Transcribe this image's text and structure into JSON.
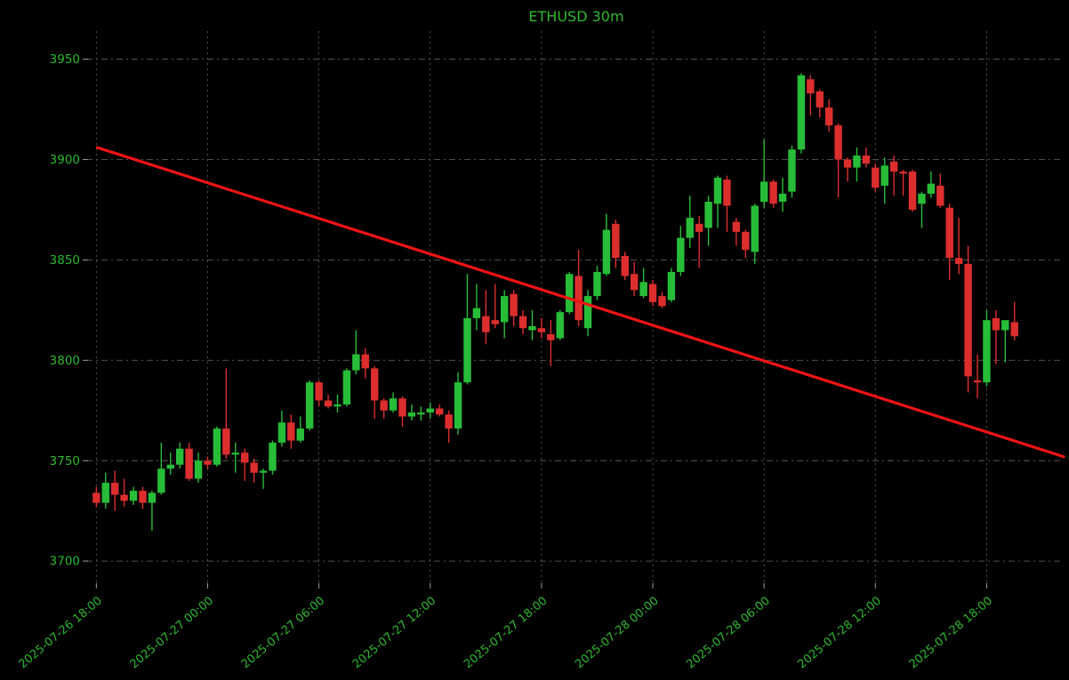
{
  "chart_data": {
    "type": "candlestick",
    "title": "ETHUSD 30m",
    "symbol": "ETHUSD",
    "interval": "30m",
    "colors": {
      "background": "#000000",
      "up": "#28bd38",
      "down": "#dd2e2e",
      "trendline": "#f01414",
      "label": "#2eb82e",
      "grid": "#5a5a5a",
      "tick": "#9a9a9a"
    },
    "y_axis": {
      "tick_values": [
        3700,
        3750,
        3800,
        3850,
        3900,
        3950
      ],
      "tick_labels": [
        "3700",
        "3750",
        "3800",
        "3850",
        "3900",
        "3950"
      ],
      "range": [
        3689,
        3964
      ]
    },
    "x_axis": {
      "tick_labels": [
        "2025-07-26 18:00",
        "2025-07-27 00:00",
        "2025-07-27 06:00",
        "2025-07-27 12:00",
        "2025-07-27 18:00",
        "2025-07-28 00:00",
        "2025-07-28 06:00",
        "2025-07-28 12:00",
        "2025-07-28 18:00"
      ],
      "tick_bars": [
        0,
        12,
        24,
        36,
        48,
        60,
        72,
        84,
        96
      ],
      "range_bars": [
        -0.8,
        104.3
      ]
    },
    "trendline": {
      "start_bar": 0.1,
      "start_price": 3906,
      "end_bar": 104.3,
      "end_price": 3752
    },
    "candles_format": [
      "open",
      "high",
      "low",
      "close"
    ],
    "candles": [
      [
        3734,
        3737,
        3727,
        3729
      ],
      [
        3729,
        3744,
        3726,
        3739
      ],
      [
        3739,
        3745,
        3725,
        3733
      ],
      [
        3733,
        3741,
        3727,
        3730
      ],
      [
        3730,
        3737,
        3728,
        3735
      ],
      [
        3735,
        3737,
        3726,
        3729
      ],
      [
        3729,
        3735,
        3715,
        3734
      ],
      [
        3734,
        3759,
        3733,
        3746
      ],
      [
        3746,
        3754,
        3743,
        3748
      ],
      [
        3748,
        3759,
        3746,
        3756
      ],
      [
        3756,
        3759,
        3740,
        3741
      ],
      [
        3741,
        3754,
        3739,
        3750
      ],
      [
        3750,
        3752,
        3746,
        3748
      ],
      [
        3748,
        3767,
        3747,
        3766
      ],
      [
        3766,
        3796,
        3751,
        3753
      ],
      [
        3753,
        3759,
        3744,
        3754
      ],
      [
        3754,
        3756,
        3740,
        3749
      ],
      [
        3749,
        3751,
        3739,
        3744
      ],
      [
        3744,
        3746,
        3736,
        3745
      ],
      [
        3745,
        3760,
        3743,
        3759
      ],
      [
        3759,
        3775,
        3757,
        3769
      ],
      [
        3769,
        3773,
        3756,
        3760
      ],
      [
        3760,
        3772,
        3759,
        3766
      ],
      [
        3766,
        3790,
        3765,
        3789
      ],
      [
        3789,
        3790,
        3777,
        3780
      ],
      [
        3780,
        3783,
        3776,
        3777
      ],
      [
        3777,
        3783,
        3774,
        3778
      ],
      [
        3778,
        3796,
        3777,
        3795
      ],
      [
        3795,
        3815,
        3793,
        3803
      ],
      [
        3803,
        3806,
        3791,
        3796
      ],
      [
        3796,
        3797,
        3771,
        3780
      ],
      [
        3780,
        3781,
        3771,
        3775
      ],
      [
        3775,
        3784,
        3774,
        3781
      ],
      [
        3781,
        3782,
        3767,
        3772
      ],
      [
        3772,
        3778,
        3770,
        3774
      ],
      [
        3773,
        3777,
        3770,
        3774
      ],
      [
        3774,
        3779,
        3771,
        3776
      ],
      [
        3776,
        3778,
        3772,
        3773
      ],
      [
        3773,
        3775,
        3759,
        3766
      ],
      [
        3766,
        3794,
        3763,
        3789
      ],
      [
        3789,
        3843,
        3788,
        3821
      ],
      [
        3821,
        3838,
        3815,
        3826
      ],
      [
        3822,
        3835,
        3808,
        3814
      ],
      [
        3820,
        3838,
        3816,
        3818
      ],
      [
        3819,
        3835,
        3811,
        3832
      ],
      [
        3833,
        3835,
        3817,
        3822
      ],
      [
        3822,
        3825,
        3813,
        3816
      ],
      [
        3815,
        3825,
        3810,
        3817
      ],
      [
        3816,
        3821,
        3811,
        3814
      ],
      [
        3813,
        3820,
        3797,
        3810
      ],
      [
        3811,
        3825,
        3810,
        3824
      ],
      [
        3824,
        3844,
        3823,
        3843
      ],
      [
        3842,
        3855,
        3817,
        3820
      ],
      [
        3816,
        3835,
        3812,
        3832
      ],
      [
        3832,
        3847,
        3830,
        3844
      ],
      [
        3843,
        3873,
        3842,
        3865
      ],
      [
        3868,
        3870,
        3846,
        3851
      ],
      [
        3852,
        3854,
        3840,
        3842
      ],
      [
        3843,
        3849,
        3832,
        3835
      ],
      [
        3832,
        3846,
        3831,
        3839
      ],
      [
        3838,
        3840,
        3827,
        3829
      ],
      [
        3832,
        3834,
        3826,
        3827
      ],
      [
        3830,
        3846,
        3829,
        3844
      ],
      [
        3844,
        3867,
        3842,
        3861
      ],
      [
        3861,
        3882,
        3856,
        3871
      ],
      [
        3868,
        3872,
        3846,
        3864
      ],
      [
        3866,
        3882,
        3857,
        3879
      ],
      [
        3878,
        3892,
        3866,
        3891
      ],
      [
        3890,
        3892,
        3864,
        3877
      ],
      [
        3869,
        3871,
        3857,
        3864
      ],
      [
        3864,
        3865,
        3851,
        3855
      ],
      [
        3854,
        3878,
        3848,
        3877
      ],
      [
        3879,
        3910,
        3876,
        3889
      ],
      [
        3889,
        3890,
        3876,
        3878
      ],
      [
        3879,
        3891,
        3874,
        3883
      ],
      [
        3884,
        3907,
        3881,
        3905
      ],
      [
        3905,
        3943,
        3903,
        3942
      ],
      [
        3940,
        3942,
        3922,
        3933
      ],
      [
        3934,
        3935,
        3921,
        3926
      ],
      [
        3926,
        3930,
        3914,
        3917
      ],
      [
        3917,
        3918,
        3881,
        3900
      ],
      [
        3900,
        3901,
        3889,
        3896
      ],
      [
        3896,
        3906,
        3889,
        3902
      ],
      [
        3902,
        3906,
        3896,
        3898
      ],
      [
        3896,
        3898,
        3884,
        3886
      ],
      [
        3887,
        3901,
        3878,
        3897
      ],
      [
        3899,
        3902,
        3882,
        3894
      ],
      [
        3894,
        3895,
        3882,
        3893
      ],
      [
        3894,
        3895,
        3874,
        3875
      ],
      [
        3878,
        3884,
        3866,
        3883
      ],
      [
        3883,
        3894,
        3881,
        3888
      ],
      [
        3887,
        3893,
        3876,
        3877
      ],
      [
        3876,
        3878,
        3840,
        3851
      ],
      [
        3851,
        3871,
        3843,
        3848
      ],
      [
        3848,
        3857,
        3784,
        3792
      ],
      [
        3790,
        3803,
        3781,
        3789
      ],
      [
        3789,
        3825,
        3787,
        3820
      ],
      [
        3821,
        3825,
        3798,
        3815
      ],
      [
        3815,
        3820,
        3799,
        3820
      ],
      [
        3819,
        3829,
        3810,
        3812
      ]
    ]
  }
}
